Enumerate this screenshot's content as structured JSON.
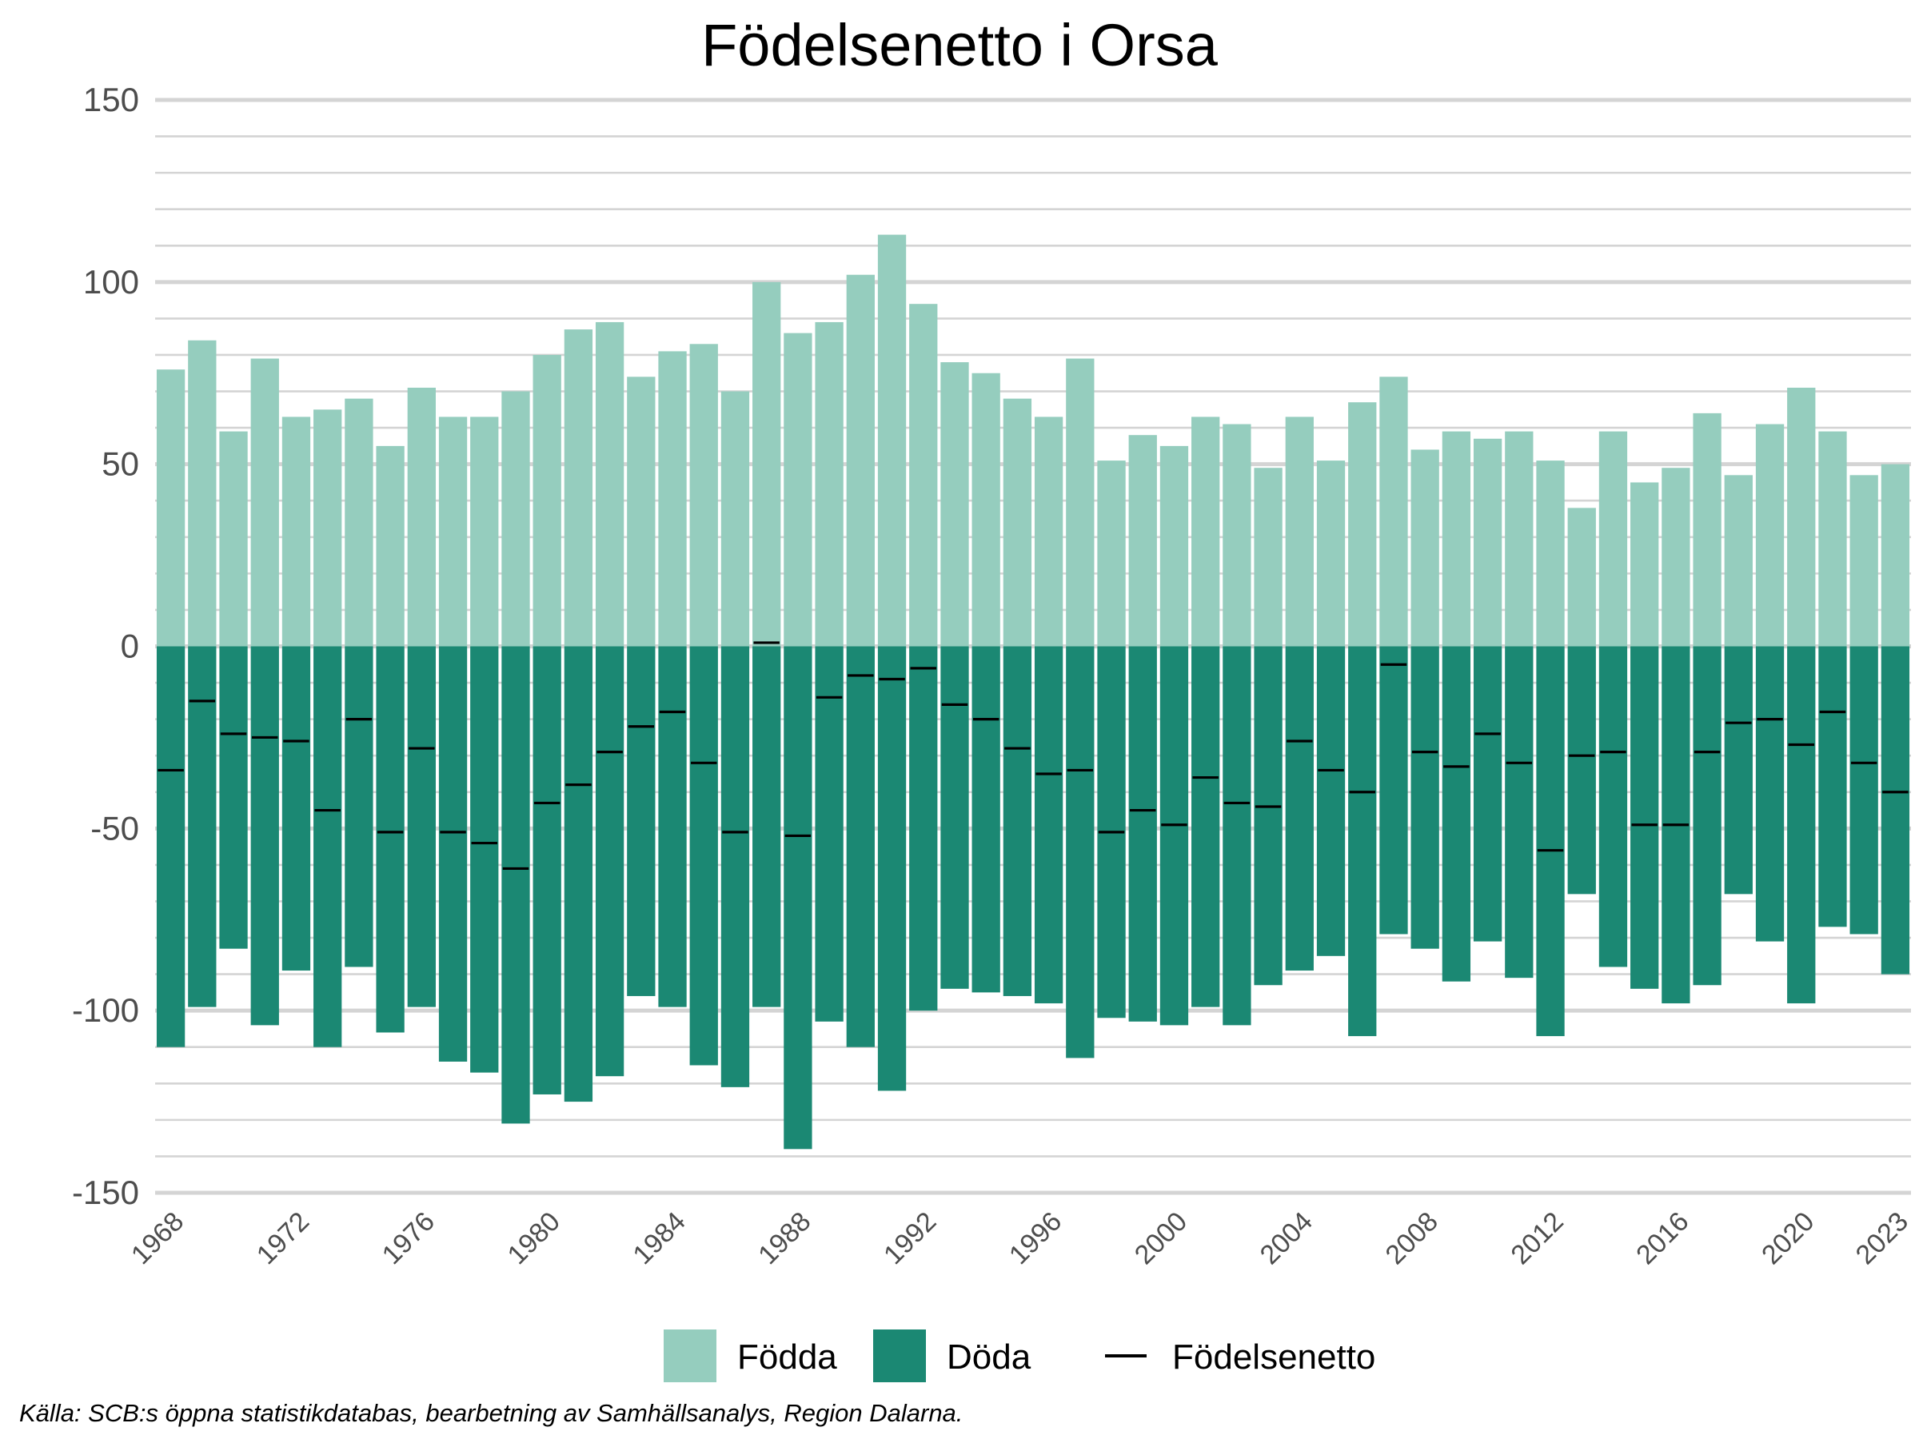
{
  "chart_data": {
    "type": "bar",
    "title": "Födelsenetto i Orsa",
    "caption": "Källa: SCB:s öppna statistikdatabas, bearbetning av Samhällsanalys, Region Dalarna.",
    "xlabel": "",
    "ylabel": "",
    "ylim": [
      -150,
      150
    ],
    "yticks": [
      -150,
      -100,
      -50,
      0,
      50,
      100,
      150
    ],
    "ytick_labels": [
      "-150",
      "-100",
      "-50",
      "0",
      "50",
      "100",
      "150"
    ],
    "xtick_labels": [
      "1968",
      "1972",
      "1976",
      "1980",
      "1984",
      "1988",
      "1992",
      "1996",
      "2000",
      "2004",
      "2008",
      "2012",
      "2016",
      "2020",
      "2023"
    ],
    "grid": true,
    "legend_position": "bottom",
    "categories": [
      1968,
      1969,
      1970,
      1971,
      1972,
      1973,
      1974,
      1975,
      1976,
      1977,
      1978,
      1979,
      1980,
      1981,
      1982,
      1983,
      1984,
      1985,
      1986,
      1987,
      1988,
      1989,
      1990,
      1991,
      1992,
      1993,
      1994,
      1995,
      1996,
      1997,
      1998,
      1999,
      2000,
      2001,
      2002,
      2003,
      2004,
      2005,
      2006,
      2007,
      2008,
      2009,
      2010,
      2011,
      2012,
      2013,
      2014,
      2015,
      2016,
      2017,
      2018,
      2019,
      2020,
      2021,
      2022,
      2023
    ],
    "series": [
      {
        "name": "Födda",
        "color": "#95cdbe",
        "values": [
          76,
          84,
          59,
          79,
          63,
          65,
          68,
          55,
          71,
          63,
          63,
          70,
          80,
          87,
          89,
          74,
          81,
          83,
          70,
          100,
          86,
          89,
          102,
          113,
          94,
          78,
          75,
          68,
          63,
          79,
          51,
          58,
          55,
          63,
          61,
          49,
          63,
          51,
          67,
          74,
          54,
          59,
          57,
          59,
          51,
          38,
          59,
          45,
          49,
          64,
          47,
          61,
          71,
          59,
          47,
          50
        ]
      },
      {
        "name": "Döda",
        "color": "#1b8873",
        "values": [
          -110,
          -99,
          -83,
          -104,
          -89,
          -110,
          -88,
          -106,
          -99,
          -114,
          -117,
          -131,
          -123,
          -125,
          -118,
          -96,
          -99,
          -115,
          -121,
          -99,
          -138,
          -103,
          -110,
          -122,
          -100,
          -94,
          -95,
          -96,
          -98,
          -113,
          -102,
          -103,
          -104,
          -99,
          -104,
          -93,
          -89,
          -85,
          -107,
          -79,
          -83,
          -92,
          -81,
          -91,
          -107,
          -68,
          -88,
          -94,
          -98,
          -93,
          -68,
          -81,
          -98,
          -77,
          -79,
          -90
        ]
      },
      {
        "name": "Födelsenetto",
        "color": "#000000",
        "values": [
          -34,
          -15,
          -24,
          -25,
          -26,
          -45,
          -20,
          -51,
          -28,
          -51,
          -54,
          -61,
          -43,
          -38,
          -29,
          -22,
          -18,
          -32,
          -51,
          1,
          -52,
          -14,
          -8,
          -9,
          -6,
          -16,
          -20,
          -28,
          -35,
          -34,
          -51,
          -45,
          -49,
          -36,
          -43,
          -44,
          -26,
          -34,
          -40,
          -5,
          -29,
          -33,
          -24,
          -32,
          -56,
          -30,
          -29,
          -49,
          -49,
          -29,
          -21,
          -20,
          -27,
          -18,
          -32,
          -40
        ]
      }
    ]
  }
}
